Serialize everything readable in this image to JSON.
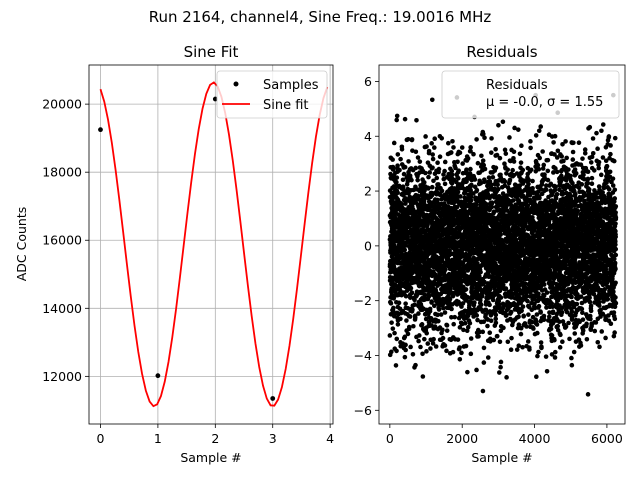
{
  "figure": {
    "suptitle": "Run 2164, channel4, Sine Freq.: 19.0016 MHz"
  },
  "chart_data": [
    {
      "type": "line",
      "title": "Sine Fit",
      "xlabel": "Sample #",
      "ylabel": "ADC Counts",
      "xlim": [
        -0.2,
        4.05
      ],
      "ylim": [
        10600,
        21150
      ],
      "xticks": [
        0,
        1,
        2,
        3,
        4
      ],
      "yticks": [
        12000,
        14000,
        16000,
        18000,
        20000
      ],
      "grid": true,
      "legend": {
        "position": "top-right",
        "entries": [
          "Samples",
          "Sine fit"
        ]
      },
      "series": [
        {
          "name": "Samples",
          "kind": "scatter",
          "color": "#000000",
          "x": [
            0,
            1,
            2,
            3
          ],
          "y": [
            19250,
            12020,
            20150,
            11350
          ]
        },
        {
          "name": "Sine fit",
          "kind": "line",
          "color": "#ff0000",
          "model": {
            "offset": 15880,
            "amplitude": 4760,
            "period": 2.0628,
            "phase": 0.2915
          },
          "x_range": [
            0,
            3.95
          ],
          "points": 60
        }
      ]
    },
    {
      "type": "scatter",
      "title": "Residuals",
      "xlabel": "Sample #",
      "ylabel": "",
      "xlim": [
        -300,
        6500
      ],
      "ylim": [
        -6.5,
        6.6
      ],
      "xticks": [
        0,
        2000,
        4000,
        6000
      ],
      "yticks": [
        -6,
        -4,
        -2,
        0,
        2,
        4,
        6
      ],
      "grid": false,
      "legend": {
        "position": "top-right",
        "entries": [
          "Residuals",
          "μ = -0.0, σ = 1.55"
        ]
      },
      "series": [
        {
          "name": "Residuals",
          "color": "#000000",
          "n_points": 6250,
          "x_range": [
            0,
            6249
          ],
          "mean": 0.0,
          "std": 1.55,
          "min": -5.85,
          "max": 5.5
        }
      ]
    }
  ]
}
